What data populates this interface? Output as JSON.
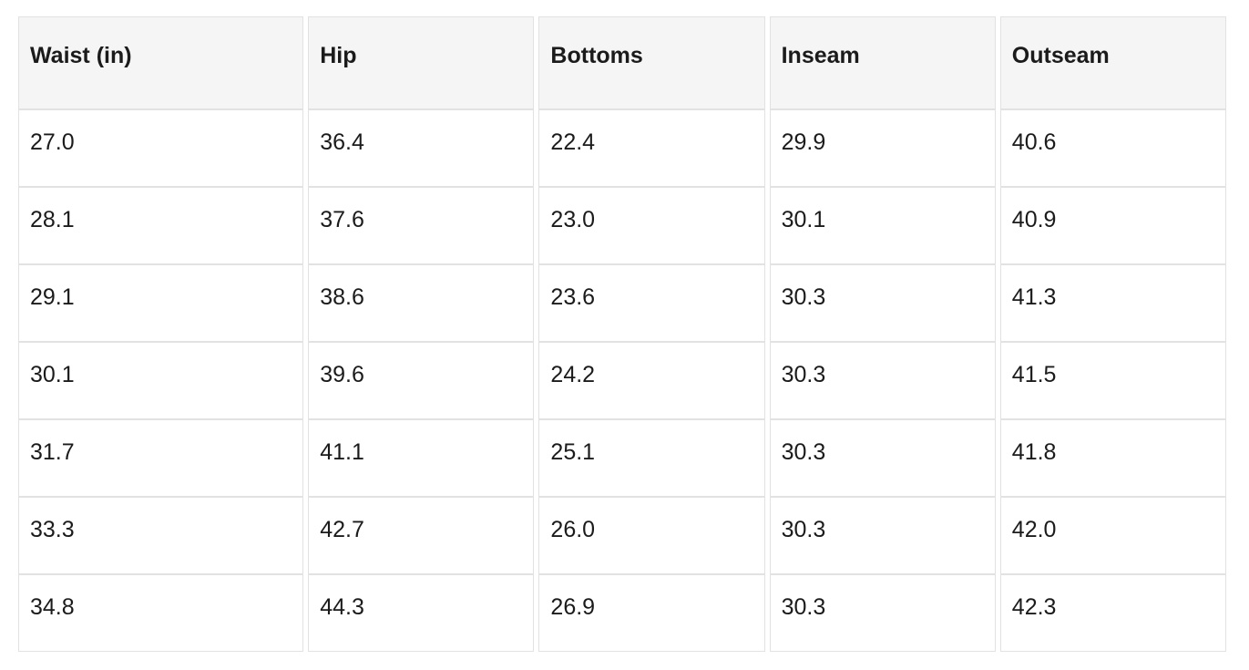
{
  "chart_data": {
    "type": "table",
    "title": "",
    "columns": [
      "Waist (in)",
      "Hip",
      "Bottoms",
      "Inseam",
      "Outseam"
    ],
    "rows": [
      [
        "27.0",
        "36.4",
        "22.4",
        "29.9",
        "40.6"
      ],
      [
        "28.1",
        "37.6",
        "23.0",
        "30.1",
        "40.9"
      ],
      [
        "29.1",
        "38.6",
        "23.6",
        "30.3",
        "41.3"
      ],
      [
        "30.1",
        "39.6",
        "24.2",
        "30.3",
        "41.5"
      ],
      [
        "31.7",
        "41.1",
        "25.1",
        "30.3",
        "41.8"
      ],
      [
        "33.3",
        "42.7",
        "26.0",
        "30.3",
        "42.0"
      ],
      [
        "34.8",
        "44.3",
        "26.9",
        "30.3",
        "42.3"
      ]
    ],
    "layout": {
      "grid": "separated-cells",
      "legend": "none"
    },
    "colors": {
      "header_bg": "#f5f5f5",
      "row_bg": "#ffffff",
      "border": "#e2e2e2",
      "text": "#1b1b1b"
    }
  }
}
